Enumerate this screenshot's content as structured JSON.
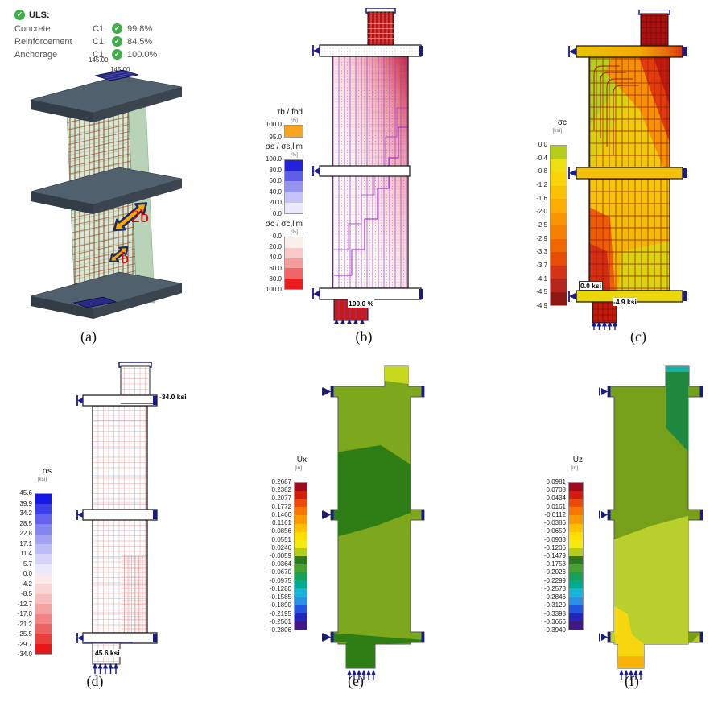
{
  "icons": {
    "check": "✓"
  },
  "figure": {
    "captions": {
      "a": "(a)",
      "b": "(b)",
      "c": "(c)",
      "d": "(d)",
      "e": "(e)",
      "f": "(f)"
    }
  },
  "panel_a": {
    "uls": {
      "title": "ULS:",
      "rows": [
        {
          "name": "Concrete",
          "combo": "C1",
          "value": "99.8%"
        },
        {
          "name": "Reinforcement",
          "combo": "C1",
          "value": "84.5%"
        },
        {
          "name": "Anchorage",
          "combo": "C1",
          "value": "100.0%"
        }
      ]
    },
    "dim_top": "145.00",
    "dim_bottom": "145.00",
    "label_2b": "2b",
    "label_b": "b",
    "colors": {
      "concrete": "#cfe6cf",
      "rebar": "#8a3a20",
      "slab": "#51606d",
      "plate": "#2a2a85",
      "arrow": "#f6aa02",
      "arrow_outline": "#1e2a5e",
      "annotation_text": "#e80000"
    }
  },
  "panel_b": {
    "legend_bond": {
      "title": "τb / fbd",
      "unit": "[%]",
      "ticks": [
        "100.0",
        "95.0"
      ],
      "colors": [
        "#f7a61d"
      ]
    },
    "legend_steel": {
      "title": "σs / σs,lim",
      "unit": "[%]",
      "ticks": [
        "100.0",
        "80.0",
        "60.0",
        "40.0",
        "20.0",
        "0.0"
      ],
      "colors": [
        "#2222dd",
        "#5e5ee9",
        "#9595f0",
        "#c4c4f7",
        "#eaeafc"
      ]
    },
    "legend_concrete": {
      "title": "σc / σc,lim",
      "unit": "[%]",
      "ticks": [
        "0.0",
        "20.0",
        "40.0",
        "60.0",
        "80.0",
        "100.0"
      ],
      "colors": [
        "#fdeeee",
        "#fac9c9",
        "#f59c9c",
        "#f06565",
        "#ea1c1c"
      ]
    },
    "label_max": "100.0 %"
  },
  "panel_c": {
    "legend": {
      "title": "σc",
      "unit": "[ksi]",
      "ticks": [
        "0.0",
        "-0.4",
        "-0.8",
        "-1.2",
        "-1.6",
        "-2.0",
        "-2.5",
        "-2.9",
        "-3.3",
        "-3.7",
        "-4.1",
        "-4.5",
        "-4.9"
      ],
      "colors": [
        "#b5cc1b",
        "#ecdf12",
        "#fbd30b",
        "#fcc107",
        "#fbad04",
        "#f99702",
        "#f68001",
        "#f06700",
        "#e84d06",
        "#d63418",
        "#b5261c",
        "#8e1914"
      ]
    },
    "label_zero": "0.0 ksi",
    "label_min": "-4.9 ksi"
  },
  "panel_d": {
    "legend": {
      "title": "σs",
      "unit": "[ksi]",
      "ticks": [
        "45.6",
        "39.9",
        "34.2",
        "28.5",
        "22.8",
        "17.1",
        "11.4",
        "5.7",
        "0.0",
        "-4.2",
        "-8.5",
        "-12.7",
        "-17.0",
        "-21.2",
        "-25.5",
        "-29.7",
        "-34.0"
      ],
      "colors": [
        "#1717e8",
        "#3d3dec",
        "#6262ef",
        "#8484f2",
        "#a2a2f5",
        "#bdbdf8",
        "#d5d5fa",
        "#eaeafc",
        "#fceaea",
        "#fad5d5",
        "#f8bdbd",
        "#f5a2a2",
        "#f28484",
        "#ef6262",
        "#ec3d3d",
        "#e81717"
      ]
    },
    "label_top": "-34.0 ksi",
    "label_bottom": "45.6 ksi"
  },
  "panel_e": {
    "legend": {
      "title": "Ux",
      "unit": "[in]",
      "ticks": [
        "0.2687",
        "0.2382",
        "0.2077",
        "0.1772",
        "0.1466",
        "0.1161",
        "0.0856",
        "0.0551",
        "0.0246",
        "-0.0059",
        "-0.0364",
        "-0.0670",
        "-0.0975",
        "-0.1280",
        "-0.1585",
        "-0.1890",
        "-0.2195",
        "-0.2501",
        "-0.2806"
      ],
      "colors": [
        "#9e0b20",
        "#d01d0f",
        "#ee4a07",
        "#f97603",
        "#fc9b00",
        "#ffc100",
        "#ffdf00",
        "#f3ea10",
        "#b5cc1c",
        "#2c7a1e",
        "#46a132",
        "#17a05c",
        "#00ab8e",
        "#17b5d8",
        "#2c8fe6",
        "#2356e0",
        "#2525b8",
        "#431687"
      ]
    }
  },
  "panel_f": {
    "legend": {
      "title": "Uz",
      "unit": "[in]",
      "ticks": [
        "0.0981",
        "0.0708",
        "0.0434",
        "0.0161",
        "-0.0112",
        "-0.0386",
        "-0.0659",
        "-0.0933",
        "-0.1206",
        "-0.1479",
        "-0.1753",
        "-0.2026",
        "-0.2299",
        "-0.2573",
        "-0.2846",
        "-0.3120",
        "-0.3393",
        "-0.3666",
        "-0.3940"
      ],
      "colors": [
        "#9e0b20",
        "#d01d0f",
        "#ee4a07",
        "#f97603",
        "#fc9b00",
        "#ffc100",
        "#ffdf00",
        "#f3ea10",
        "#b5cc1c",
        "#2c7a1e",
        "#46a132",
        "#17a05c",
        "#00ab8e",
        "#17b5d8",
        "#2c8fe6",
        "#2356e0",
        "#2525b8",
        "#431687"
      ]
    }
  }
}
